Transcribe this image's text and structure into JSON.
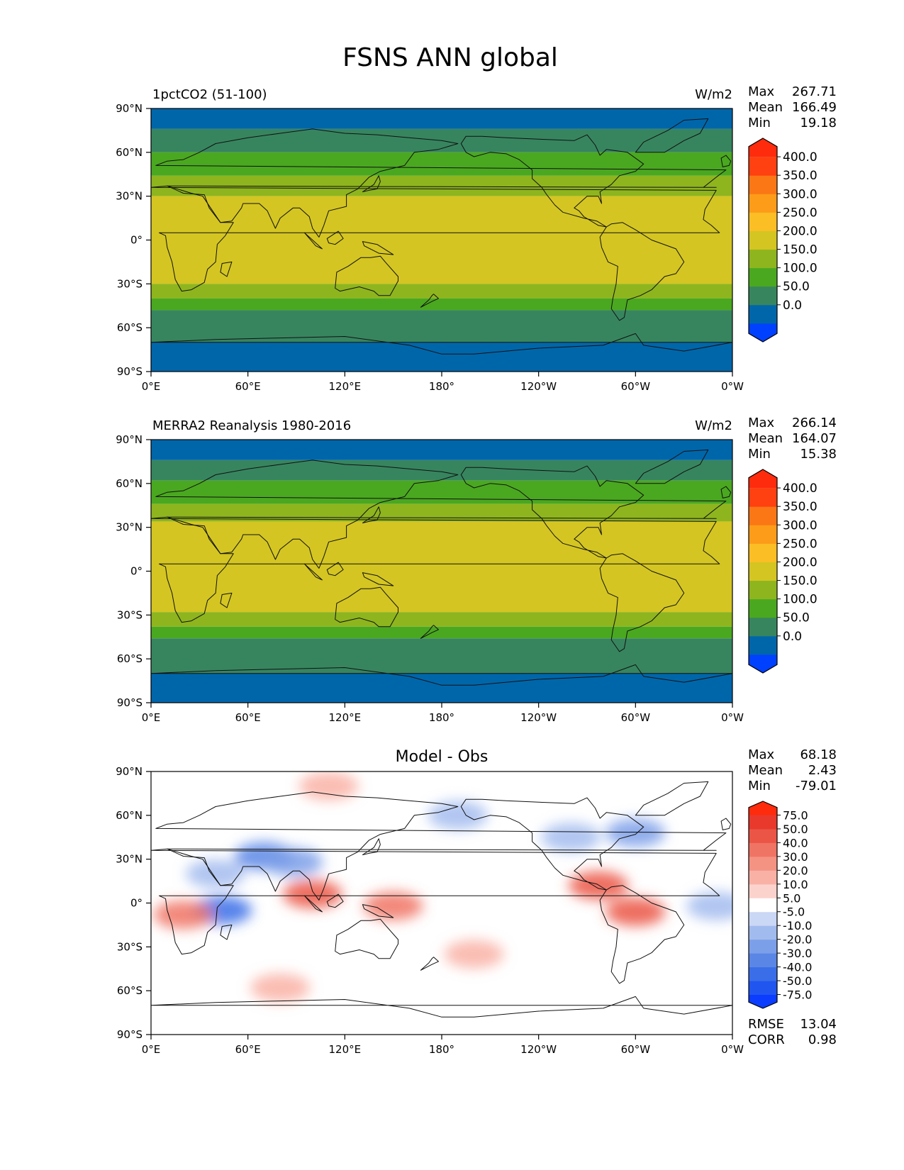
{
  "title": "FSNS ANN global",
  "chart_data": [
    {
      "type": "heatmap",
      "panel": "test",
      "title_left": "1pctCO2 (51-100)",
      "title_center": "",
      "units": "W/m2",
      "stats": [
        {
          "label": "Max",
          "value": "267.71"
        },
        {
          "label": "Mean",
          "value": "166.49"
        },
        {
          "label": "Min",
          "value": "19.18"
        }
      ],
      "colorbar": {
        "ticks": [
          "400.0",
          "350.0",
          "300.0",
          "250.0",
          "200.0",
          "150.0",
          "100.0",
          "50.0",
          "0.0"
        ],
        "colors": [
          "#0040ff",
          "#0066aa",
          "#37855f",
          "#4aa820",
          "#8eb51e",
          "#d4c522",
          "#fbbe25",
          "#fd9c18",
          "#fb7716",
          "#ff4010",
          "#ff2b0d"
        ]
      },
      "xticks": [
        "0°E",
        "60°E",
        "120°E",
        "180°",
        "120°W",
        "60°W",
        "0°W"
      ],
      "yticks": [
        "90°N",
        "60°N",
        "30°N",
        "0°",
        "30°S",
        "60°S",
        "90°S"
      ],
      "xlim": [
        0,
        360
      ],
      "ylim": [
        -90,
        90
      ],
      "zonal_bands": [
        {
          "lat_from": 90,
          "lat_to": 76,
          "value": 35
        },
        {
          "lat_from": 76,
          "lat_to": 60,
          "value": 80
        },
        {
          "lat_from": 60,
          "lat_to": 44,
          "value": 125
        },
        {
          "lat_from": 44,
          "lat_to": 30,
          "value": 165
        },
        {
          "lat_from": 30,
          "lat_to": -30,
          "value": 215
        },
        {
          "lat_from": -30,
          "lat_to": -40,
          "value": 165
        },
        {
          "lat_from": -40,
          "lat_to": -48,
          "value": 125
        },
        {
          "lat_from": -48,
          "lat_to": -70,
          "value": 80
        },
        {
          "lat_from": -70,
          "lat_to": -90,
          "value": 35
        }
      ]
    },
    {
      "type": "heatmap",
      "panel": "reference",
      "title_left": "MERRA2 Reanalysis 1980-2016",
      "title_center": "",
      "units": "W/m2",
      "stats": [
        {
          "label": "Max",
          "value": "266.14"
        },
        {
          "label": "Mean",
          "value": "164.07"
        },
        {
          "label": "Min",
          "value": "15.38"
        }
      ],
      "colorbar": {
        "ticks": [
          "400.0",
          "350.0",
          "300.0",
          "250.0",
          "200.0",
          "150.0",
          "100.0",
          "50.0",
          "0.0"
        ],
        "colors": [
          "#0040ff",
          "#0066aa",
          "#37855f",
          "#4aa820",
          "#8eb51e",
          "#d4c522",
          "#fbbe25",
          "#fd9c18",
          "#fb7716",
          "#ff4010",
          "#ff2b0d"
        ]
      },
      "xticks": [
        "0°E",
        "60°E",
        "120°E",
        "180°",
        "120°W",
        "60°W",
        "0°W"
      ],
      "yticks": [
        "90°N",
        "60°N",
        "30°N",
        "0°",
        "30°S",
        "60°S",
        "90°S"
      ],
      "xlim": [
        0,
        360
      ],
      "ylim": [
        -90,
        90
      ],
      "zonal_bands": [
        {
          "lat_from": 90,
          "lat_to": 76,
          "value": 35
        },
        {
          "lat_from": 76,
          "lat_to": 62,
          "value": 80
        },
        {
          "lat_from": 62,
          "lat_to": 46,
          "value": 125
        },
        {
          "lat_from": 46,
          "lat_to": 34,
          "value": 165
        },
        {
          "lat_from": 34,
          "lat_to": -28,
          "value": 215
        },
        {
          "lat_from": -28,
          "lat_to": -38,
          "value": 165
        },
        {
          "lat_from": -38,
          "lat_to": -46,
          "value": 125
        },
        {
          "lat_from": -46,
          "lat_to": -70,
          "value": 80
        },
        {
          "lat_from": -70,
          "lat_to": -90,
          "value": 35
        }
      ]
    },
    {
      "type": "heatmap",
      "panel": "difference",
      "title_left": "",
      "title_center": "Model - Obs",
      "units": "",
      "stats": [
        {
          "label": "Max",
          "value": "68.18"
        },
        {
          "label": "Mean",
          "value": "2.43"
        },
        {
          "label": "Min",
          "value": "-79.01"
        }
      ],
      "colorbar": {
        "ticks": [
          "75.0",
          "50.0",
          "40.0",
          "30.0",
          "20.0",
          "10.0",
          "5.0",
          "-5.0",
          "-10.0",
          "-20.0",
          "-30.0",
          "-40.0",
          "-50.0",
          "-75.0"
        ],
        "colors": [
          "#0a3dff",
          "#2155f0",
          "#3a6ee8",
          "#5a86e6",
          "#7c9fe9",
          "#a2bbee",
          "#cad7f5",
          "#ffffff",
          "#fcd3cc",
          "#f9b1a6",
          "#f59383",
          "#f07464",
          "#eb5546",
          "#e8392c",
          "#ff2b0d"
        ]
      },
      "xticks": [
        "0°E",
        "60°E",
        "120°E",
        "180°",
        "120°W",
        "60°W",
        "0°W"
      ],
      "yticks": [
        "90°N",
        "60°N",
        "30°N",
        "0°",
        "30°S",
        "60°S",
        "90°S"
      ],
      "xlim": [
        0,
        360
      ],
      "ylim": [
        -90,
        90
      ],
      "metrics": [
        {
          "label": "RMSE",
          "value": "13.04"
        },
        {
          "label": "CORR",
          "value": "0.98"
        }
      ],
      "anomalies": [
        {
          "lon": 70,
          "lat": 32,
          "value": -40
        },
        {
          "lon": 88,
          "lat": 28,
          "value": -25
        },
        {
          "lon": 100,
          "lat": 6,
          "value": 40
        },
        {
          "lon": 150,
          "lat": -2,
          "value": 35
        },
        {
          "lon": 277,
          "lat": 12,
          "value": 40
        },
        {
          "lon": 300,
          "lat": -6,
          "value": 40
        },
        {
          "lon": 300,
          "lat": 48,
          "value": -30
        },
        {
          "lon": 44,
          "lat": -5,
          "value": -45
        },
        {
          "lon": 20,
          "lat": -8,
          "value": 30
        },
        {
          "lon": 40,
          "lat": 20,
          "value": -15
        },
        {
          "lon": 200,
          "lat": -35,
          "value": 15
        },
        {
          "lon": 80,
          "lat": -58,
          "value": 15
        },
        {
          "lon": 190,
          "lat": 60,
          "value": -15
        },
        {
          "lon": 260,
          "lat": 45,
          "value": -20
        },
        {
          "lon": 110,
          "lat": 80,
          "value": 15
        },
        {
          "lon": 350,
          "lat": -2,
          "value": -20
        }
      ]
    }
  ]
}
